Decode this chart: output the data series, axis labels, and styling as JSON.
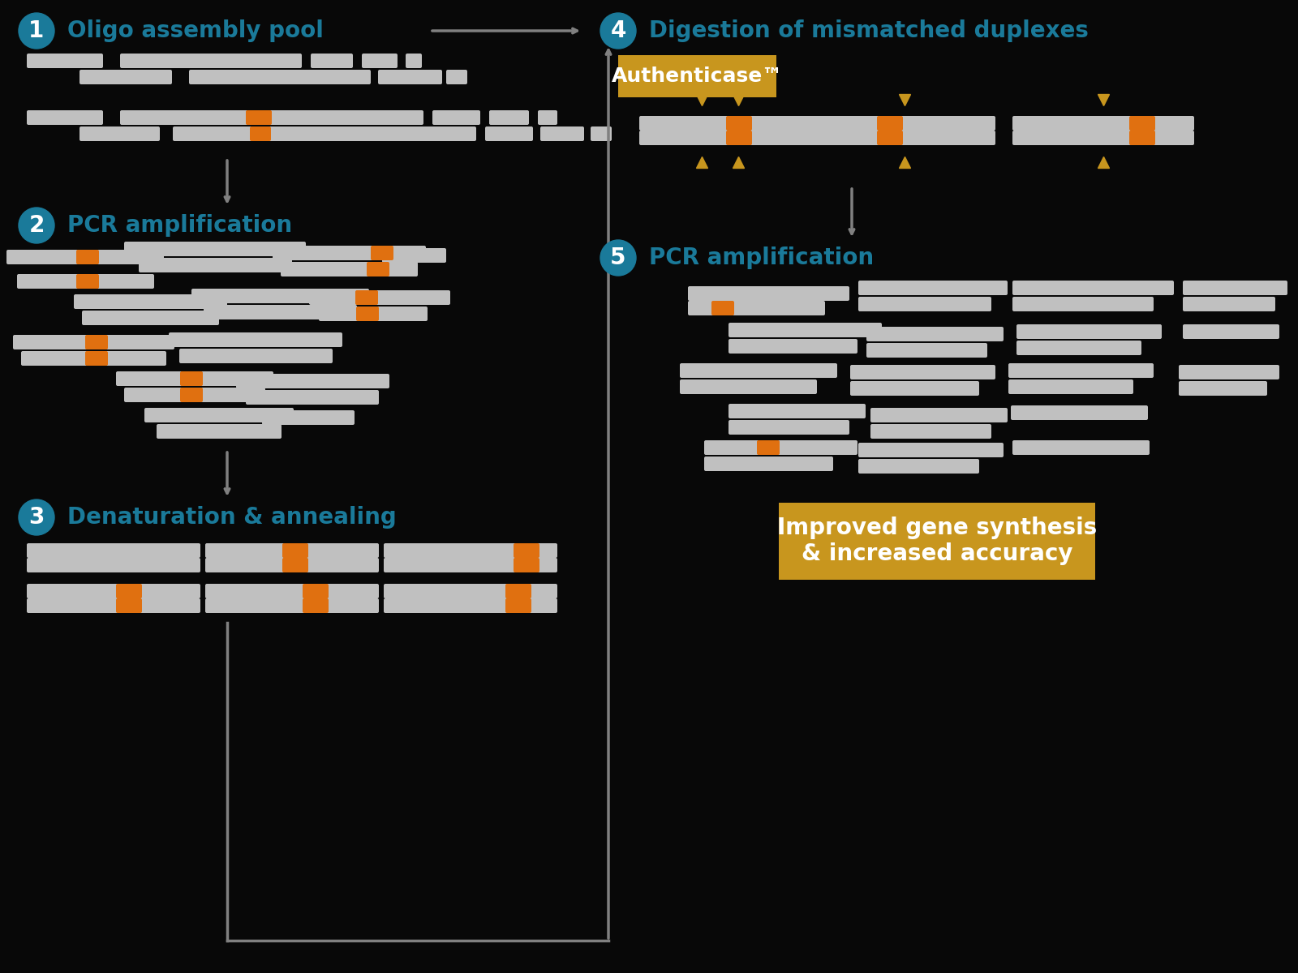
{
  "bg_color": "#080808",
  "bar_color": "#c0c0c0",
  "orange_color": "#e07010",
  "teal_color": "#1a7a9a",
  "gold_color": "#c8961e",
  "arrow_color": "#808080",
  "step1_title": "Oligo assembly pool",
  "step2_title": "PCR amplification",
  "step3_title": "Denaturation & annealing",
  "step4_title": "Digestion of mismatched duplexes",
  "step5_title": "PCR amplification",
  "authenticase_label": "Authenticase™",
  "improved_label": "Improved gene synthesis\n& increased accuracy"
}
